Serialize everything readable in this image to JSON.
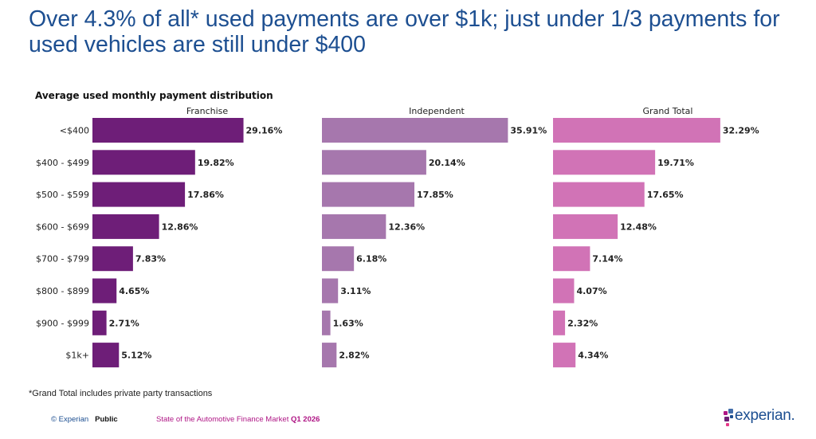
{
  "headline": "Over 4.3% of all* used payments are over $1k; just under 1/3 payments for used vehicles are still under $400",
  "chart_data": {
    "type": "bar",
    "orientation": "horizontal",
    "title": "Average used monthly payment distribution",
    "categories": [
      "<$400",
      "$400 - $499",
      "$500 - $599",
      "$600 - $699",
      "$700 - $799",
      "$800 - $899",
      "$900 - $999",
      "$1k+"
    ],
    "series": [
      {
        "name": "Franchise",
        "color": "#6e1e78",
        "values": [
          29.16,
          19.82,
          17.86,
          12.86,
          7.83,
          4.65,
          2.71,
          5.12
        ],
        "labels": [
          "29.16%",
          "19.82%",
          "17.86%",
          "12.86%",
          "7.83%",
          "4.65%",
          "2.71%",
          "5.12%"
        ]
      },
      {
        "name": "Independent",
        "color": "#a677ad",
        "values": [
          35.91,
          20.14,
          17.85,
          12.36,
          6.18,
          3.11,
          1.63,
          2.82
        ],
        "labels": [
          "35.91%",
          "20.14%",
          "17.85%",
          "12.36%",
          "6.18%",
          "3.11%",
          "1.63%",
          "2.82%"
        ]
      },
      {
        "name": "Grand Total",
        "color": "#d173b6",
        "values": [
          32.29,
          19.71,
          17.65,
          12.48,
          7.14,
          4.07,
          2.32,
          4.34
        ],
        "labels": [
          "32.29%",
          "19.71%",
          "17.65%",
          "12.48%",
          "7.14%",
          "4.07%",
          "2.32%",
          "4.34%"
        ]
      }
    ],
    "xlim": [
      0,
      36
    ],
    "grid": false,
    "legend": "none"
  },
  "footnote": "*Grand Total includes private party transactions",
  "footer": {
    "copyright": "© Experian",
    "classification": "Public",
    "report": "State of the Automotive Finance Market",
    "period": "Q1 2026"
  },
  "logo": {
    "text": "experian."
  }
}
